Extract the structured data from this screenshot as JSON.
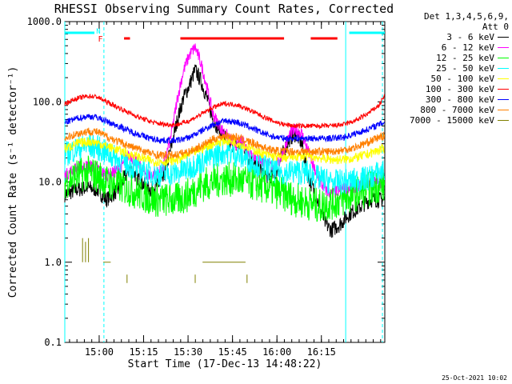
{
  "chart_data": {
    "type": "line",
    "title": "RHESSI Observing Summary Count Rates, Corrected",
    "xlabel": "Start Time (17-Dec-13 14:48:22)",
    "ylabel": "Corrected Count Rate (s⁻¹ detector⁻¹)",
    "yscale": "log",
    "ylim": [
      0.1,
      1000
    ],
    "xlim_minutes": [
      0,
      108
    ],
    "x_ticks": [
      {
        "label": "15:00",
        "min": 11.6
      },
      {
        "label": "15:15",
        "min": 26.6
      },
      {
        "label": "15:30",
        "min": 41.6
      },
      {
        "label": "15:45",
        "min": 56.6
      },
      {
        "label": "16:00",
        "min": 71.6
      },
      {
        "label": "16:15",
        "min": 86.6
      }
    ],
    "y_ticks": [
      {
        "label": "1000.0",
        "v": 1000
      },
      {
        "label": "100.0",
        "v": 100
      },
      {
        "label": "10.0",
        "v": 10
      },
      {
        "label": "1.0",
        "v": 1
      },
      {
        "label": "0.1",
        "v": 0.1
      }
    ],
    "legend_header": [
      "Det 1,3,4,5,6,9,",
      "Att 0"
    ],
    "series": [
      {
        "name": "3 - 6 keV",
        "color": "#000000",
        "x": [
          0,
          4,
          8,
          11,
          14,
          18,
          22,
          24,
          27,
          29,
          33,
          36,
          38,
          40,
          42,
          44,
          46,
          48,
          50,
          53,
          56,
          58,
          60,
          62,
          65,
          68,
          70,
          72,
          74,
          76,
          78,
          80,
          82,
          84,
          86,
          88,
          90,
          93,
          96,
          100,
          103,
          108
        ],
        "y": [
          7,
          8,
          8.5,
          8,
          6,
          8,
          15,
          12,
          9,
          8,
          10,
          28,
          60,
          110,
          160,
          250,
          180,
          110,
          60,
          40,
          30,
          28,
          30,
          20,
          15,
          12,
          12,
          15,
          25,
          35,
          40,
          30,
          12,
          8,
          5,
          3,
          2.5,
          3,
          4,
          5,
          6,
          6
        ]
      },
      {
        "name": "6 - 12 keV",
        "color": "#ff00ff",
        "x": [
          0,
          4,
          8,
          11,
          14,
          18,
          22,
          24,
          27,
          29,
          33,
          36,
          38,
          40,
          42,
          44,
          46,
          48,
          50,
          53,
          56,
          58,
          60,
          62,
          65,
          68,
          70,
          72,
          74,
          76,
          78,
          80,
          82,
          84,
          86,
          88,
          90,
          93,
          96,
          100,
          103,
          108
        ],
        "y": [
          12,
          15,
          16,
          15,
          12,
          14,
          22,
          18,
          13,
          12,
          14,
          40,
          110,
          240,
          380,
          480,
          300,
          150,
          70,
          45,
          33,
          30,
          32,
          24,
          20,
          17,
          16,
          17,
          25,
          40,
          45,
          40,
          25,
          15,
          10,
          8,
          7,
          8,
          8.5,
          9,
          10,
          10
        ]
      },
      {
        "name": "12 - 25 keV",
        "color": "#00ff00",
        "x": [
          0,
          4,
          8,
          11,
          14,
          18,
          22,
          26,
          30,
          34,
          38,
          42,
          46,
          50,
          54,
          58,
          62,
          66,
          70,
          74,
          78,
          82,
          86,
          90,
          94,
          98,
          102,
          106,
          108
        ],
        "y": [
          10,
          12,
          13,
          12,
          10,
          9,
          8,
          7,
          6,
          6,
          6,
          7,
          9,
          10,
          11,
          10.5,
          10,
          9,
          8,
          7,
          6,
          5.5,
          5,
          5.5,
          6,
          7,
          8,
          9,
          9
        ]
      },
      {
        "name": "25 - 50 keV",
        "color": "#00ffff",
        "x": [
          0,
          4,
          8,
          11,
          14,
          18,
          22,
          26,
          30,
          34,
          38,
          42,
          46,
          50,
          54,
          58,
          62,
          66,
          70,
          74,
          78,
          82,
          86,
          90,
          94,
          98,
          102,
          106,
          108
        ],
        "y": [
          22,
          26,
          28,
          27,
          23,
          19,
          16,
          14,
          12.5,
          12.5,
          13,
          15,
          18,
          21,
          24,
          22,
          19,
          16,
          14,
          13,
          13.5,
          13,
          11,
          10,
          10,
          10.5,
          11,
          13,
          14
        ]
      },
      {
        "name": "50 - 100 keV",
        "color": "#ffff00",
        "x": [
          0,
          4,
          8,
          11,
          14,
          18,
          22,
          26,
          30,
          34,
          38,
          42,
          46,
          50,
          54,
          58,
          62,
          66,
          70,
          74,
          78,
          82,
          86,
          90,
          94,
          98,
          102,
          106,
          108
        ],
        "y": [
          26,
          30,
          32,
          31,
          28,
          25,
          22,
          20,
          18,
          18,
          19,
          22,
          26,
          30,
          33,
          31,
          27,
          23,
          21,
          20,
          21,
          21,
          20,
          19,
          19,
          20,
          22,
          25,
          26
        ]
      },
      {
        "name": "100 - 300 keV",
        "color": "#ff0000",
        "x": [
          0,
          4,
          8,
          11,
          14,
          18,
          22,
          26,
          30,
          34,
          38,
          42,
          46,
          50,
          54,
          58,
          62,
          66,
          70,
          74,
          78,
          82,
          86,
          90,
          94,
          98,
          102,
          106,
          108
        ],
        "y": [
          95,
          110,
          118,
          115,
          100,
          85,
          72,
          62,
          55,
          52,
          52,
          58,
          70,
          85,
          95,
          92,
          80,
          68,
          58,
          52,
          50,
          50,
          50,
          50,
          52,
          58,
          70,
          90,
          120
        ]
      },
      {
        "name": "300 - 800 keV",
        "color": "#0000ff",
        "x": [
          0,
          4,
          8,
          11,
          14,
          18,
          22,
          26,
          30,
          34,
          38,
          42,
          46,
          50,
          54,
          58,
          62,
          66,
          70,
          74,
          78,
          82,
          86,
          90,
          94,
          98,
          102,
          106,
          108
        ],
        "y": [
          55,
          62,
          66,
          64,
          57,
          50,
          43,
          38,
          34,
          33,
          33,
          36,
          43,
          52,
          58,
          56,
          49,
          42,
          37,
          35,
          35,
          35,
          35,
          35,
          36,
          40,
          45,
          52,
          56
        ]
      },
      {
        "name": "800 - 7000 keV",
        "color": "#ff8000",
        "x": [
          0,
          4,
          8,
          11,
          14,
          18,
          22,
          26,
          30,
          34,
          38,
          42,
          46,
          50,
          54,
          58,
          62,
          66,
          70,
          74,
          78,
          82,
          86,
          90,
          94,
          98,
          102,
          106,
          108
        ],
        "y": [
          35,
          40,
          43,
          42,
          37,
          32,
          28,
          25,
          22,
          21.5,
          22,
          24,
          28,
          34,
          38,
          36,
          32,
          28,
          25,
          24,
          24,
          24,
          24,
          24,
          25,
          27,
          31,
          36,
          38
        ]
      },
      {
        "name": "7000 - 15000 keV",
        "color": "#808000",
        "x": [
          5.5,
          6,
          6.5,
          7,
          7.5,
          8,
          9,
          11,
          12,
          14.5,
          15,
          25,
          26,
          48,
          49,
          51,
          56,
          60,
          61,
          66
        ],
        "y": [
          1,
          2,
          1,
          1.8,
          1,
          2,
          1,
          1,
          1,
          1,
          1,
          1,
          1,
          1,
          1,
          1,
          1,
          1,
          1,
          1
        ]
      }
    ],
    "flag_bars": [
      {
        "label": "N",
        "color": "#00ffff",
        "from": 0,
        "to": 10
      },
      {
        "label": "N",
        "color": "#00ffff",
        "from": 96,
        "to": 108
      },
      {
        "label": "F",
        "color": "#ff0000",
        "from": 20,
        "to": 22
      },
      {
        "label": "F",
        "color": "#ff0000",
        "from": 39,
        "to": 74
      },
      {
        "label": "F",
        "color": "#ff0000",
        "from": 83,
        "to": 92
      }
    ],
    "flag_text": {
      "n": "N",
      "f": "F"
    },
    "vlines": [
      {
        "min": 0,
        "style": "solid",
        "color": "#00ffff"
      },
      {
        "min": 13.2,
        "style": "dashed",
        "color": "#00ffff"
      },
      {
        "min": 94.8,
        "style": "solid",
        "color": "#00ffff"
      },
      {
        "min": 107.2,
        "style": "dashed",
        "color": "#00ffff"
      }
    ],
    "grid": false,
    "legend_position": "top-right"
  },
  "timestamp": "25-Oct-2021 10:02"
}
